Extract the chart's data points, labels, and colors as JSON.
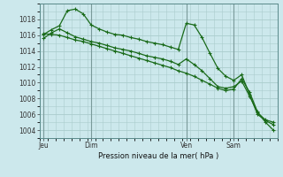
{
  "bg_color": "#cce8ec",
  "grid_color": "#aacccc",
  "line_color": "#1a6b1a",
  "title": "Pression niveau de la mer( hPa )",
  "ylim": [
    1003.0,
    1020.0
  ],
  "yticks": [
    1004,
    1006,
    1008,
    1010,
    1012,
    1014,
    1016,
    1018
  ],
  "day_labels": [
    "Jeu",
    "Dim",
    "Ven",
    "Sam"
  ],
  "day_positions": [
    0.5,
    6.5,
    18.5,
    24.5
  ],
  "vline_positions": [
    0.5,
    6.5,
    18.5,
    24.5
  ],
  "xlim": [
    0,
    30
  ],
  "line1_x": [
    0.5,
    1.5,
    2.5,
    3.5,
    4.5,
    5.5,
    6.5,
    7.5,
    8.5,
    9.5,
    10.5,
    11.5,
    12.5,
    13.5,
    14.5,
    15.5,
    16.5,
    17.5,
    18.5,
    19.5,
    20.5,
    21.5,
    22.5,
    23.5,
    24.5,
    25.5,
    26.5,
    27.5,
    28.5,
    29.5
  ],
  "line1_y": [
    1016.1,
    1016.7,
    1017.2,
    1019.1,
    1019.3,
    1018.7,
    1017.3,
    1016.8,
    1016.4,
    1016.1,
    1016.0,
    1015.7,
    1015.5,
    1015.2,
    1015.0,
    1014.8,
    1014.5,
    1014.2,
    1017.5,
    1017.3,
    1015.7,
    1013.7,
    1011.8,
    1010.8,
    1010.3,
    1011.0,
    1008.5,
    1006.0,
    1005.2,
    1004.7
  ],
  "line2_x": [
    0.5,
    1.5,
    2.5,
    3.5,
    4.5,
    5.5,
    6.5,
    7.5,
    8.5,
    9.5,
    10.5,
    11.5,
    12.5,
    13.5,
    14.5,
    15.5,
    16.5,
    17.5,
    18.5,
    19.5,
    20.5,
    21.5,
    22.5,
    23.5,
    24.5,
    25.5,
    26.5,
    27.5,
    28.5,
    29.5
  ],
  "line2_y": [
    1015.6,
    1016.3,
    1016.8,
    1016.3,
    1015.8,
    1015.5,
    1015.2,
    1015.0,
    1014.7,
    1014.4,
    1014.2,
    1014.0,
    1013.7,
    1013.4,
    1013.2,
    1013.0,
    1012.7,
    1012.3,
    1013.0,
    1012.3,
    1011.5,
    1010.5,
    1009.5,
    1009.3,
    1009.5,
    1010.2,
    1008.3,
    1006.2,
    1005.3,
    1005.0
  ],
  "line3_x": [
    0.5,
    1.5,
    2.5,
    3.5,
    4.5,
    5.5,
    6.5,
    7.5,
    8.5,
    9.5,
    10.5,
    11.5,
    12.5,
    13.5,
    14.5,
    15.5,
    16.5,
    17.5,
    18.5,
    19.5,
    20.5,
    21.5,
    22.5,
    23.5,
    24.5,
    25.5,
    26.5,
    27.5,
    28.5,
    29.5
  ],
  "line3_y": [
    1016.2,
    1016.1,
    1016.0,
    1015.7,
    1015.4,
    1015.2,
    1014.9,
    1014.6,
    1014.3,
    1014.0,
    1013.7,
    1013.4,
    1013.1,
    1012.8,
    1012.5,
    1012.2,
    1011.9,
    1011.5,
    1011.2,
    1010.8,
    1010.3,
    1009.8,
    1009.3,
    1009.0,
    1009.2,
    1010.5,
    1008.8,
    1006.3,
    1005.0,
    1004.0
  ]
}
